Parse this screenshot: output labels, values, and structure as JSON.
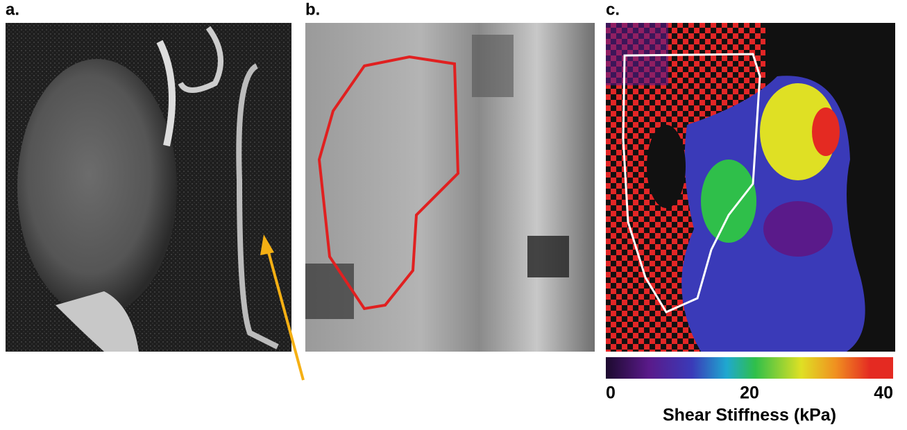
{
  "panels": [
    {
      "label": "a."
    },
    {
      "label": "b."
    },
    {
      "label": "c."
    }
  ],
  "colorbar": {
    "lim": [
      0,
      40
    ],
    "ticks": [
      0,
      20,
      40
    ],
    "label": "Shear Stiffness (kPa)"
  }
}
